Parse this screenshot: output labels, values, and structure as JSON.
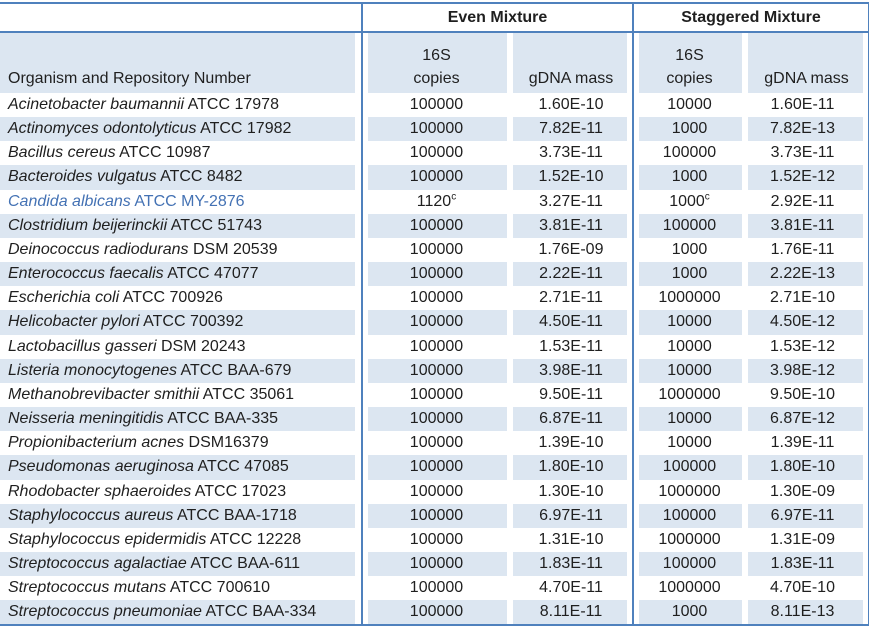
{
  "colors": {
    "band_fill": "#dce6f1",
    "border_blue": "#4f81bd",
    "highlight_text_blue": "#4472b4",
    "text": "#1f1f1f"
  },
  "table": {
    "group_headers": {
      "organism_corner": "",
      "even": "Even Mixture",
      "staggered": "Staggered Mixture"
    },
    "column_headers": {
      "organism": "Organism and Repository Number",
      "copies_line1": "16S",
      "copies_line2": "copies",
      "gdna_mass": "gDNA mass"
    },
    "rows": [
      {
        "name": "Acinetobacter baumannii",
        "repo": "ATCC 17978",
        "even_copies": "100000",
        "even_note": "",
        "even_mass": "1.60E-10",
        "stag_copies": "10000",
        "stag_note": "",
        "stag_mass": "1.60E-11",
        "highlight": false
      },
      {
        "name": "Actinomyces odontolyticus",
        "repo": "ATCC 17982",
        "even_copies": "100000",
        "even_note": "",
        "even_mass": "7.82E-11",
        "stag_copies": "1000",
        "stag_note": "",
        "stag_mass": "7.82E-13",
        "highlight": false
      },
      {
        "name": "Bacillus cereus",
        "repo": "ATCC 10987",
        "even_copies": "100000",
        "even_note": "",
        "even_mass": "3.73E-11",
        "stag_copies": "100000",
        "stag_note": "",
        "stag_mass": "3.73E-11",
        "highlight": false
      },
      {
        "name": "Bacteroides vulgatus",
        "repo": "ATCC 8482",
        "even_copies": "100000",
        "even_note": "",
        "even_mass": "1.52E-10",
        "stag_copies": "1000",
        "stag_note": "",
        "stag_mass": "1.52E-12",
        "highlight": false
      },
      {
        "name": "Candida albicans",
        "repo": "ATCC MY-2876",
        "even_copies": "1120",
        "even_note": "c",
        "even_mass": "3.27E-11",
        "stag_copies": "1000",
        "stag_note": "c",
        "stag_mass": "2.92E-11",
        "highlight": true
      },
      {
        "name": "Clostridium beijerinckii",
        "repo": "ATCC 51743",
        "even_copies": "100000",
        "even_note": "",
        "even_mass": "3.81E-11",
        "stag_copies": "100000",
        "stag_note": "",
        "stag_mass": "3.81E-11",
        "highlight": false
      },
      {
        "name": "Deinococcus radiodurans",
        "repo": "DSM 20539",
        "even_copies": "100000",
        "even_note": "",
        "even_mass": "1.76E-09",
        "stag_copies": "1000",
        "stag_note": "",
        "stag_mass": "1.76E-11",
        "highlight": false
      },
      {
        "name": "Enterococcus faecalis",
        "repo": "ATCC 47077",
        "even_copies": "100000",
        "even_note": "",
        "even_mass": "2.22E-11",
        "stag_copies": "1000",
        "stag_note": "",
        "stag_mass": "2.22E-13",
        "highlight": false
      },
      {
        "name": "Escherichia coli",
        "repo": "ATCC 700926",
        "even_copies": "100000",
        "even_note": "",
        "even_mass": "2.71E-11",
        "stag_copies": "1000000",
        "stag_note": "",
        "stag_mass": "2.71E-10",
        "highlight": false
      },
      {
        "name": "Helicobacter pylori",
        "repo": "ATCC 700392",
        "even_copies": "100000",
        "even_note": "",
        "even_mass": "4.50E-11",
        "stag_copies": "10000",
        "stag_note": "",
        "stag_mass": "4.50E-12",
        "highlight": false
      },
      {
        "name": "Lactobacillus gasseri",
        "repo": "DSM 20243",
        "even_copies": "100000",
        "even_note": "",
        "even_mass": "1.53E-11",
        "stag_copies": "10000",
        "stag_note": "",
        "stag_mass": "1.53E-12",
        "highlight": false
      },
      {
        "name": "Listeria monocytogenes",
        "repo": "ATCC BAA-679",
        "even_copies": "100000",
        "even_note": "",
        "even_mass": "3.98E-11",
        "stag_copies": "10000",
        "stag_note": "",
        "stag_mass": "3.98E-12",
        "highlight": false
      },
      {
        "name": "Methanobrevibacter smithii",
        "repo": "ATCC 35061",
        "even_copies": "100000",
        "even_note": "",
        "even_mass": "9.50E-11",
        "stag_copies": "1000000",
        "stag_note": "",
        "stag_mass": "9.50E-10",
        "highlight": false
      },
      {
        "name": "Neisseria meningitidis",
        "repo": "ATCC BAA-335",
        "even_copies": "100000",
        "even_note": "",
        "even_mass": "6.87E-11",
        "stag_copies": "10000",
        "stag_note": "",
        "stag_mass": "6.87E-12",
        "highlight": false
      },
      {
        "name": "Propionibacterium acnes",
        "repo": "DSM16379",
        "even_copies": "100000",
        "even_note": "",
        "even_mass": "1.39E-10",
        "stag_copies": "10000",
        "stag_note": "",
        "stag_mass": "1.39E-11",
        "highlight": false
      },
      {
        "name": "Pseudomonas aeruginosa",
        "repo": "ATCC 47085",
        "even_copies": "100000",
        "even_note": "",
        "even_mass": "1.80E-10",
        "stag_copies": "100000",
        "stag_note": "",
        "stag_mass": "1.80E-10",
        "highlight": false
      },
      {
        "name": "Rhodobacter sphaeroides",
        "repo": "ATCC 17023",
        "even_copies": "100000",
        "even_note": "",
        "even_mass": "1.30E-10",
        "stag_copies": "1000000",
        "stag_note": "",
        "stag_mass": "1.30E-09",
        "highlight": false
      },
      {
        "name": "Staphylococcus aureus",
        "repo": "ATCC BAA-1718",
        "even_copies": "100000",
        "even_note": "",
        "even_mass": "6.97E-11",
        "stag_copies": "100000",
        "stag_note": "",
        "stag_mass": "6.97E-11",
        "highlight": false
      },
      {
        "name": "Staphylococcus epidermidis",
        "repo": "ATCC 12228",
        "even_copies": "100000",
        "even_note": "",
        "even_mass": "1.31E-10",
        "stag_copies": "1000000",
        "stag_note": "",
        "stag_mass": "1.31E-09",
        "highlight": false
      },
      {
        "name": "Streptococcus agalactiae",
        "repo": "ATCC BAA-611",
        "even_copies": "100000",
        "even_note": "",
        "even_mass": "1.83E-11",
        "stag_copies": "100000",
        "stag_note": "",
        "stag_mass": "1.83E-11",
        "highlight": false
      },
      {
        "name": "Streptococcus mutans",
        "repo": "ATCC 700610",
        "even_copies": "100000",
        "even_note": "",
        "even_mass": "4.70E-11",
        "stag_copies": "1000000",
        "stag_note": "",
        "stag_mass": "4.70E-10",
        "highlight": false
      },
      {
        "name": "Streptococcus pneumoniae",
        "repo": "ATCC BAA-334",
        "even_copies": "100000",
        "even_note": "",
        "even_mass": "8.11E-11",
        "stag_copies": "1000",
        "stag_note": "",
        "stag_mass": "8.11E-13",
        "highlight": false
      }
    ]
  }
}
